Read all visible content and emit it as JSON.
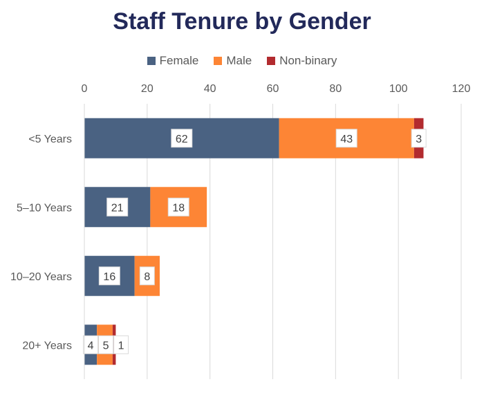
{
  "chart_data": {
    "type": "bar",
    "orientation": "horizontal",
    "stacked": true,
    "title": "Staff Tenure by Gender",
    "xlabel": "",
    "ylabel": "",
    "xlim": [
      0,
      120
    ],
    "x_ticks": [
      0,
      20,
      40,
      60,
      80,
      100,
      120
    ],
    "grid": "vertical",
    "legend_position": "top",
    "categories": [
      "<5 Years",
      "5–10 Years",
      "10–20 Years",
      "20+ Years"
    ],
    "series": [
      {
        "name": "Female",
        "color": "#4a6282",
        "values": [
          62,
          21,
          16,
          4
        ]
      },
      {
        "name": "Male",
        "color": "#fd8535",
        "values": [
          43,
          18,
          8,
          5
        ]
      },
      {
        "name": "Non-binary",
        "color": "#b22b2f",
        "values": [
          3,
          null,
          null,
          1
        ]
      }
    ]
  }
}
